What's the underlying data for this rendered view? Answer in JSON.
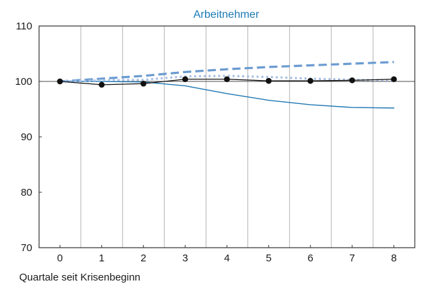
{
  "chart_data": {
    "type": "line",
    "title": "Arbeitnehmer",
    "xlabel": "Quartale seit Krisenbeginn",
    "ylabel": "",
    "x": [
      0,
      1,
      2,
      3,
      4,
      5,
      6,
      7,
      8
    ],
    "xlim": [
      -0.5,
      8.5
    ],
    "ylim": [
      70,
      110
    ],
    "yticks": [
      70,
      80,
      90,
      100,
      110
    ],
    "xticks": [
      0,
      1,
      2,
      3,
      4,
      5,
      6,
      7,
      8
    ],
    "grid": "vertical",
    "colors": {
      "title": "#1a7ab5",
      "grid": "#b3b3b3",
      "frame": "#333333",
      "ref_line": "#4d4d4d"
    },
    "series": [
      {
        "style": "solid-black-markers",
        "color": "#111111",
        "values": [
          100,
          99.4,
          99.6,
          100.4,
          100.4,
          100.1,
          100.1,
          100.2,
          100.4
        ]
      },
      {
        "style": "solid-thin",
        "color": "#1f78b4",
        "values": [
          100,
          100,
          99.9,
          99.2,
          97.8,
          96.6,
          95.8,
          95.3,
          95.2
        ]
      },
      {
        "style": "dashed-thick",
        "color": "#6b9bd1",
        "values": [
          100,
          100.5,
          101.0,
          101.7,
          102.2,
          102.6,
          102.9,
          103.2,
          103.5
        ]
      },
      {
        "style": "dotted",
        "color": "#a9c0e4",
        "values": [
          100,
          100.2,
          100.3,
          100.9,
          101.0,
          100.8,
          100.5,
          100.3,
          100.2
        ]
      }
    ]
  }
}
